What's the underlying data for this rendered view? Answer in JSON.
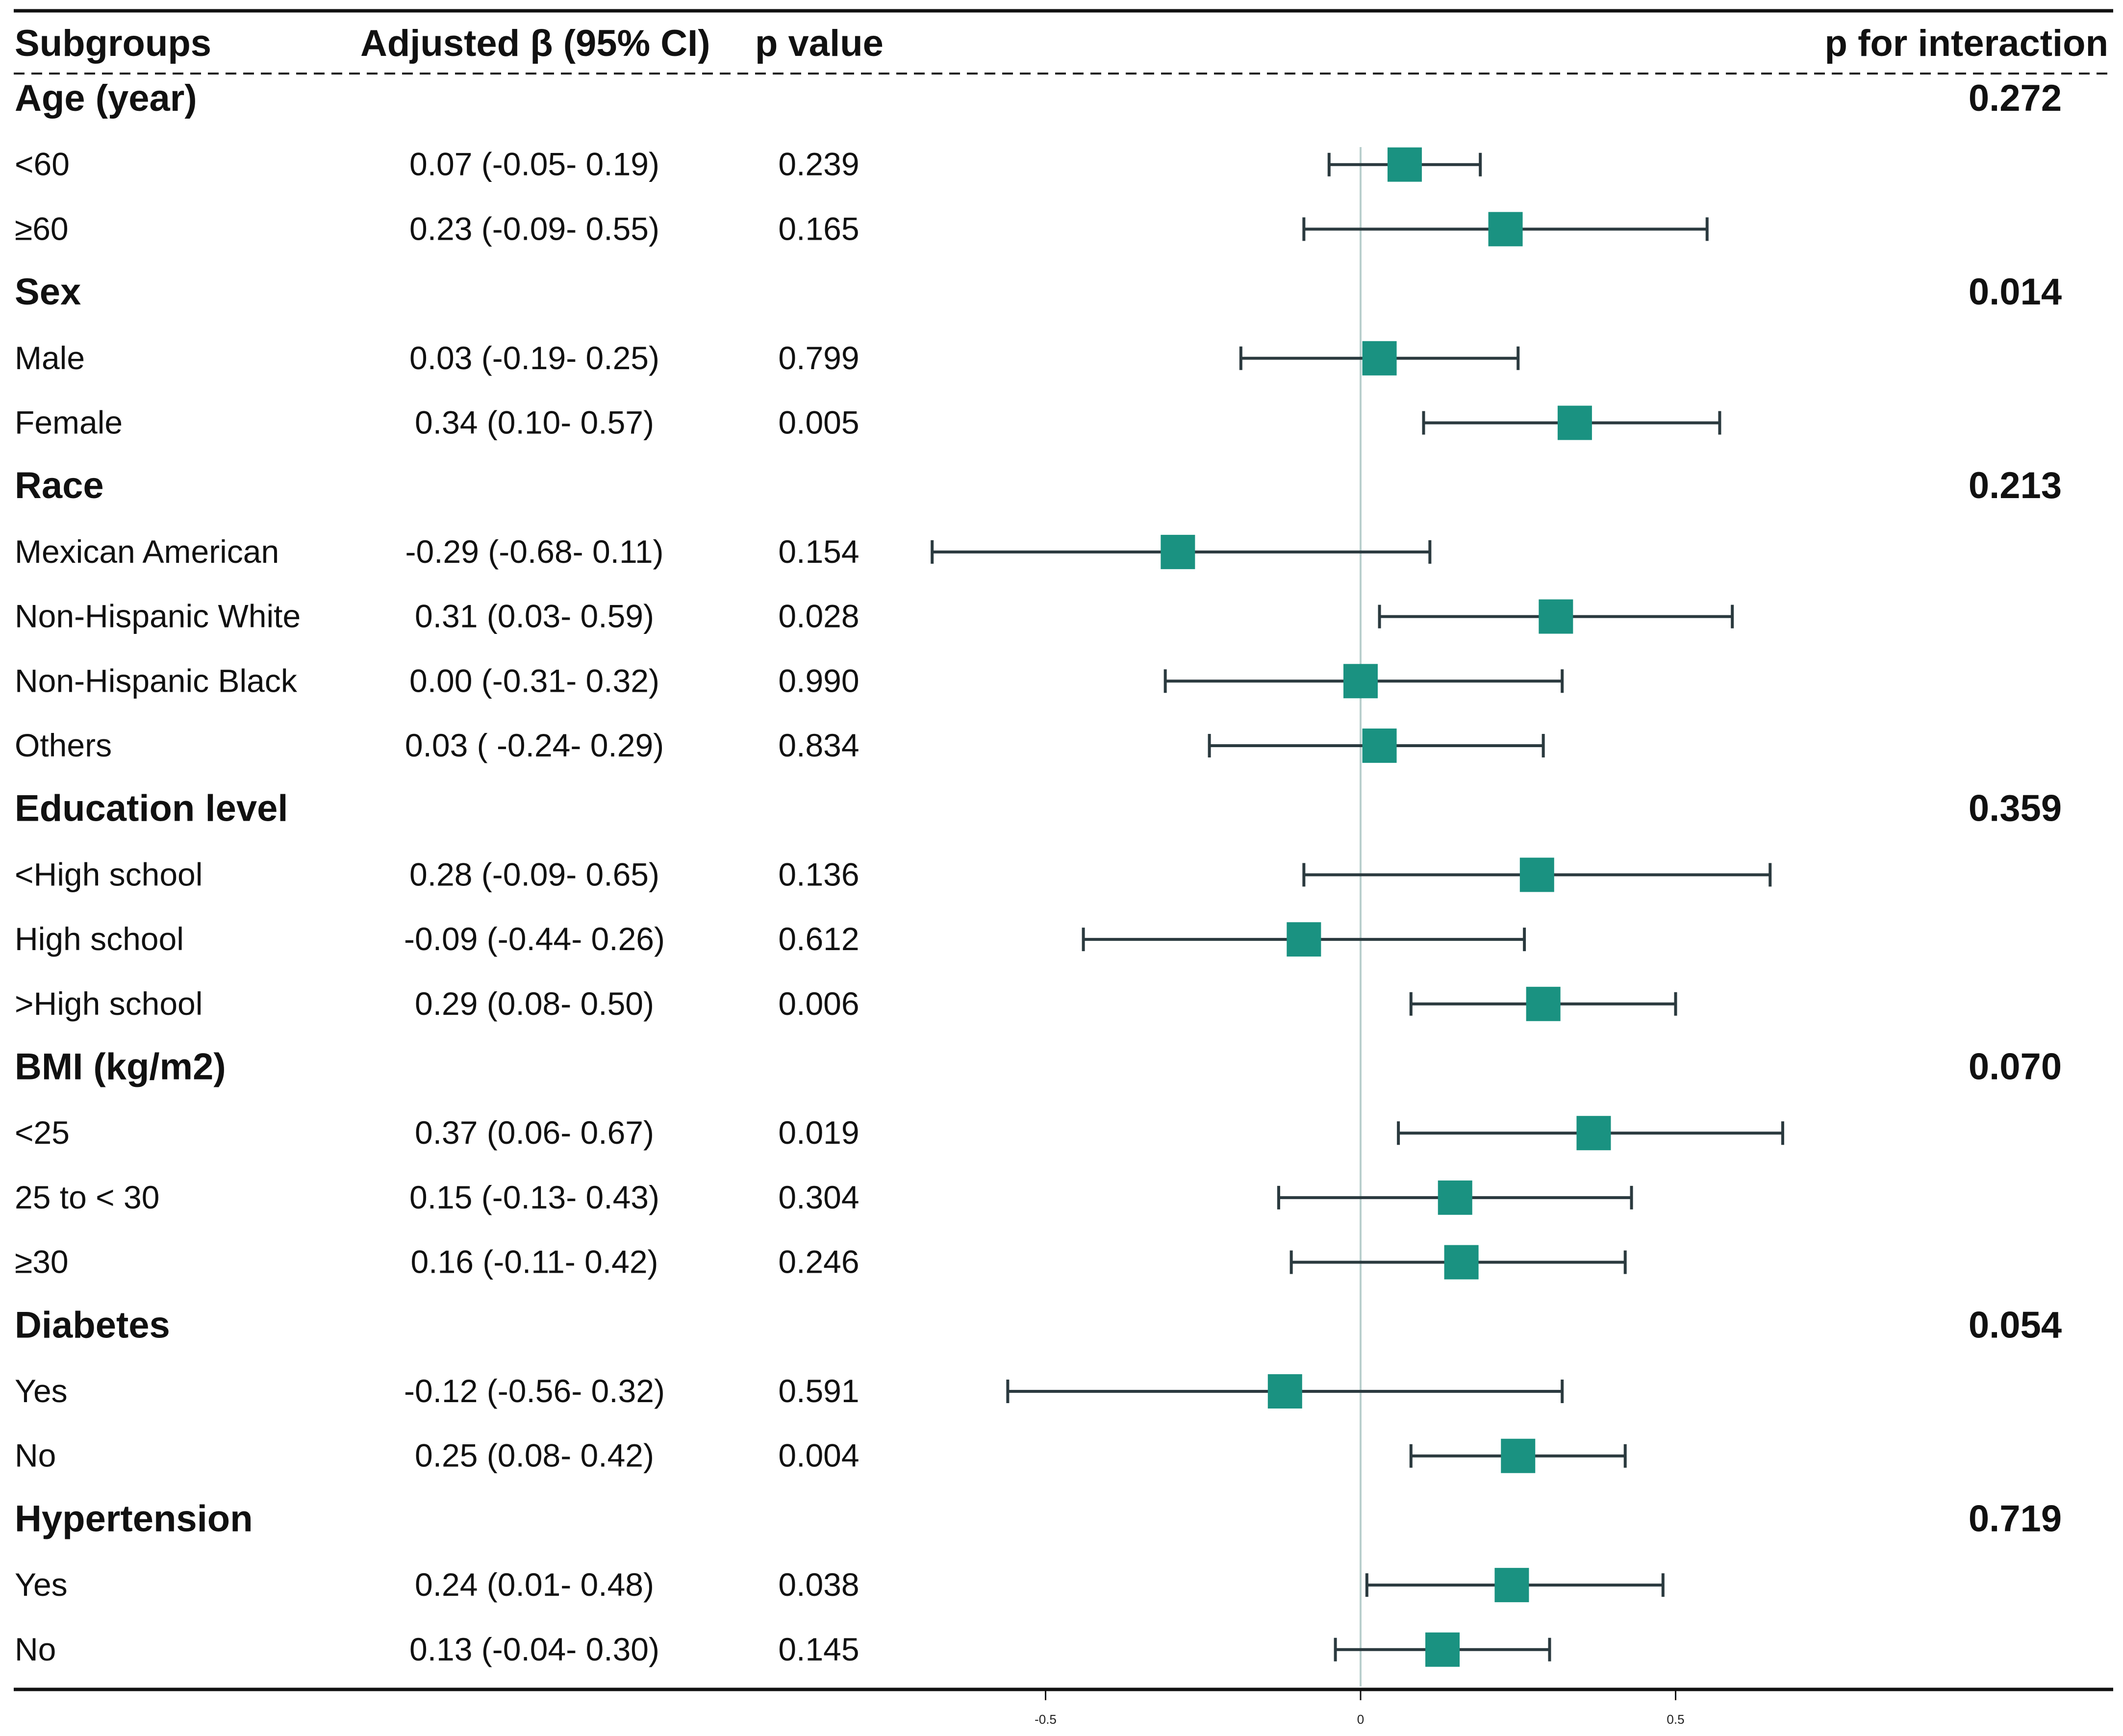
{
  "chart_data": {
    "type": "forest",
    "headers": {
      "subgroups": "Subgroups",
      "beta": "Adjusted β (95% CI)",
      "pvalue": "p value",
      "interaction": "p for interaction"
    },
    "xaxis": {
      "range": [
        -0.68,
        0.68
      ],
      "ticks": [
        -0.5,
        0,
        0.5
      ],
      "tick_labels": [
        "-0.5",
        "0",
        "0.5"
      ],
      "reference_line": 0
    },
    "colors": {
      "marker": "#1a9281",
      "errorbar": "#2b3a3f",
      "refline": "#b9cfcd",
      "text": "#111111"
    },
    "groups": [
      {
        "name": "Age (year)",
        "p_interaction": "0.272",
        "rows": [
          {
            "label": "<60",
            "ci_text": "0.07 (-0.05- 0.19)",
            "p": "0.239",
            "beta": 0.07,
            "lo": -0.05,
            "hi": 0.19
          },
          {
            "label": "≥60",
            "ci_text": "0.23 (-0.09- 0.55)",
            "p": "0.165",
            "beta": 0.23,
            "lo": -0.09,
            "hi": 0.55
          }
        ]
      },
      {
        "name": "Sex",
        "p_interaction": "0.014",
        "rows": [
          {
            "label": "Male",
            "ci_text": "0.03 (-0.19- 0.25)",
            "p": "0.799",
            "beta": 0.03,
            "lo": -0.19,
            "hi": 0.25
          },
          {
            "label": "Female",
            "ci_text": "0.34 (0.10- 0.57)",
            "p": "0.005",
            "beta": 0.34,
            "lo": 0.1,
            "hi": 0.57
          }
        ]
      },
      {
        "name": "Race",
        "p_interaction": "0.213",
        "rows": [
          {
            "label": "Mexican American",
            "ci_text": "-0.29 (-0.68- 0.11)",
            "p": "0.154",
            "beta": -0.29,
            "lo": -0.68,
            "hi": 0.11
          },
          {
            "label": "Non-Hispanic White",
            "ci_text": "0.31 (0.03- 0.59)",
            "p": "0.028",
            "beta": 0.31,
            "lo": 0.03,
            "hi": 0.59
          },
          {
            "label": "Non-Hispanic Black",
            "ci_text": "0.00 (-0.31- 0.32)",
            "p": "0.990",
            "beta": 0.0,
            "lo": -0.31,
            "hi": 0.32
          },
          {
            "label": "Others",
            "ci_text": "0.03 ( -0.24- 0.29)",
            "p": "0.834",
            "beta": 0.03,
            "lo": -0.24,
            "hi": 0.29
          }
        ]
      },
      {
        "name": "Education level",
        "p_interaction": "0.359",
        "rows": [
          {
            "label": "<High school",
            "ci_text": "0.28 (-0.09- 0.65)",
            "p": "0.136",
            "beta": 0.28,
            "lo": -0.09,
            "hi": 0.65
          },
          {
            "label": "High school",
            "ci_text": "-0.09 (-0.44- 0.26)",
            "p": "0.612",
            "beta": -0.09,
            "lo": -0.44,
            "hi": 0.26
          },
          {
            "label": ">High school",
            "ci_text": "0.29 (0.08- 0.50)",
            "p": "0.006",
            "beta": 0.29,
            "lo": 0.08,
            "hi": 0.5
          }
        ]
      },
      {
        "name": "BMI (kg/m2)",
        "p_interaction": "0.070",
        "rows": [
          {
            "label": "<25",
            "ci_text": "0.37 (0.06- 0.67)",
            "p": "0.019",
            "beta": 0.37,
            "lo": 0.06,
            "hi": 0.67
          },
          {
            "label": "25 to < 30",
            "ci_text": "0.15 (-0.13- 0.43)",
            "p": "0.304",
            "beta": 0.15,
            "lo": -0.13,
            "hi": 0.43
          },
          {
            "label": "≥30",
            "ci_text": "0.16 (-0.11- 0.42)",
            "p": "0.246",
            "beta": 0.16,
            "lo": -0.11,
            "hi": 0.42
          }
        ]
      },
      {
        "name": "Diabetes",
        "p_interaction": "0.054",
        "rows": [
          {
            "label": "Yes",
            "ci_text": "-0.12 (-0.56- 0.32)",
            "p": "0.591",
            "beta": -0.12,
            "lo": -0.56,
            "hi": 0.32
          },
          {
            "label": "No",
            "ci_text": "0.25 (0.08- 0.42)",
            "p": "0.004",
            "beta": 0.25,
            "lo": 0.08,
            "hi": 0.42
          }
        ]
      },
      {
        "name": "Hypertension",
        "p_interaction": "0.719",
        "rows": [
          {
            "label": "Yes",
            "ci_text": "0.24 (0.01- 0.48)",
            "p": "0.038",
            "beta": 0.24,
            "lo": 0.01,
            "hi": 0.48
          },
          {
            "label": "No",
            "ci_text": "0.13 (-0.04- 0.30)",
            "p": "0.145",
            "beta": 0.13,
            "lo": -0.04,
            "hi": 0.3
          }
        ]
      }
    ]
  }
}
